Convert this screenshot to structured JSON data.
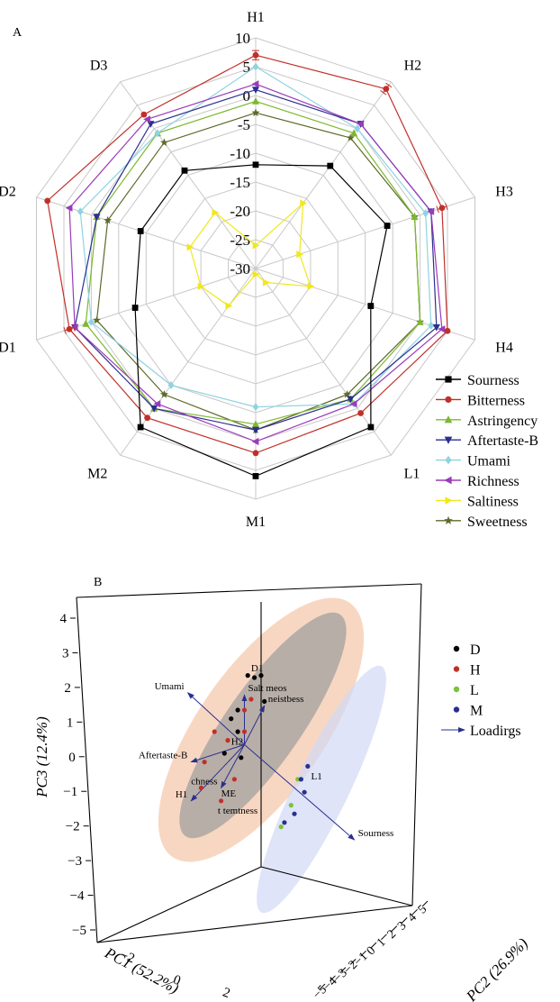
{
  "chart_data": [
    {
      "type": "radar",
      "panel_label": "A",
      "categories": [
        "H1",
        "H2",
        "H3",
        "H4",
        "L1",
        "M1",
        "M2",
        "D1",
        "D2",
        "D3"
      ],
      "radial_ticks": [
        "10",
        "5",
        "0",
        "-5",
        "-10",
        "-15",
        "-20",
        "-25",
        "-30"
      ],
      "rlim": [
        -30,
        10
      ],
      "grid": true,
      "legend_position": "right",
      "series": [
        {
          "name": "Sourness",
          "color": "#000000",
          "marker": "square",
          "values": [
            -12,
            -8,
            -6,
            -9,
            4,
            6,
            4,
            -8,
            -9,
            -9
          ]
        },
        {
          "name": "Bitterness",
          "color": "#c0302a",
          "marker": "circle",
          "values": [
            7,
            8.5,
            4,
            5,
            1,
            2,
            2,
            4,
            8,
            3
          ]
        },
        {
          "name": "Astringency",
          "color": "#7cb82f",
          "marker": "triangle-up",
          "values": [
            -1,
            -1,
            -1,
            0,
            -2,
            -3,
            0,
            1,
            -1,
            -1
          ]
        },
        {
          "name": "Aftertaste-B",
          "color": "#2b2f8f",
          "marker": "triangle-down",
          "values": [
            1,
            1,
            2,
            3,
            -2,
            -2,
            0,
            3,
            -1,
            1
          ]
        },
        {
          "name": "Umami",
          "color": "#8fd3e0",
          "marker": "diamond",
          "values": [
            5,
            0,
            1,
            2,
            -1,
            -6,
            -5,
            0,
            2,
            -1
          ]
        },
        {
          "name": "Richness",
          "color": "#9a3bbb",
          "marker": "triangle-left",
          "values": [
            2,
            1,
            2,
            4,
            -1,
            0,
            -1,
            3,
            4,
            2
          ]
        },
        {
          "name": "Saltiness",
          "color": "#f0e81c",
          "marker": "triangle-right",
          "values": [
            -26,
            -16,
            -22,
            -20,
            -27,
            -29,
            -22,
            -20,
            -18,
            -18
          ]
        },
        {
          "name": "Sweetness",
          "color": "#5e6a2a",
          "marker": "star",
          "values": [
            -3,
            -2,
            -1,
            0,
            -3,
            -2,
            -3,
            -1,
            -3,
            -3
          ]
        }
      ],
      "error_bar_points": [
        [
          "Bitterness",
          "H1"
        ],
        [
          "Bitterness",
          "H2"
        ],
        [
          "Bitterness",
          "H3"
        ],
        [
          "Bitterness",
          "D1"
        ]
      ]
    },
    {
      "type": "scatter3d",
      "panel_label": "B",
      "axes": {
        "x": {
          "label": "PC1 (52.2%)",
          "ticks": [
            "−2",
            "0",
            "2"
          ],
          "lim": [
            -3,
            3
          ]
        },
        "y": {
          "label": "PC2 (26.9%)",
          "ticks": [
            "−5",
            "−4",
            "−3",
            "−2",
            "−1",
            "0",
            "1",
            "2",
            "3",
            "4",
            "5"
          ],
          "lim": [
            -5,
            5
          ]
        },
        "z": {
          "label": "PC3 (12.4%)",
          "ticks": [
            "4",
            "3",
            "2",
            "1",
            "0",
            "−1",
            "−2",
            "−3",
            "−4",
            "−5"
          ],
          "lim": [
            -5,
            4.5
          ]
        }
      },
      "legend": [
        {
          "name": "D",
          "color": "#000000",
          "kind": "dot"
        },
        {
          "name": "H",
          "color": "#c0302a",
          "kind": "dot"
        },
        {
          "name": "L",
          "color": "#7cc23b",
          "kind": "dot"
        },
        {
          "name": "M",
          "color": "#2b2f8f",
          "kind": "dot"
        },
        {
          "name": "Loadirgs",
          "color": "#2b2f8f",
          "kind": "arrow"
        }
      ],
      "legend_position": "right",
      "ellipses": [
        {
          "group": "H",
          "color": "#f2c4a8"
        },
        {
          "group": "D",
          "color": "#a9a9a9"
        },
        {
          "group": "L+M",
          "color": "#cfd6f2"
        }
      ],
      "points": [
        {
          "group": "D",
          "x": -0.4,
          "z": 1.8
        },
        {
          "group": "D",
          "x": -0.2,
          "z": 1.75
        },
        {
          "group": "D",
          "x": 0.0,
          "z": 1.8
        },
        {
          "group": "D",
          "x": 0.1,
          "z": 1.2
        },
        {
          "group": "D",
          "x": -0.7,
          "z": 1.0
        },
        {
          "group": "D",
          "x": -0.9,
          "z": 0.8
        },
        {
          "group": "D",
          "x": -0.7,
          "z": 0.5
        },
        {
          "group": "D",
          "x": -0.6,
          "z": -0.1
        },
        {
          "group": "D",
          "x": -1.1,
          "z": 0.0
        },
        {
          "group": "H",
          "x": -1.4,
          "z": 0.5
        },
        {
          "group": "H",
          "x": -0.5,
          "z": 1.0
        },
        {
          "group": "H",
          "x": -0.3,
          "z": 1.25
        },
        {
          "group": "H",
          "x": -1.0,
          "z": 0.3
        },
        {
          "group": "H",
          "x": -1.7,
          "z": -0.2
        },
        {
          "group": "H",
          "x": -1.8,
          "z": -0.8
        },
        {
          "group": "H",
          "x": -0.8,
          "z": -0.6
        },
        {
          "group": "H",
          "x": -1.2,
          "z": -1.1
        },
        {
          "group": "H",
          "x": -0.5,
          "z": 0.5
        },
        {
          "group": "L",
          "x": 1.1,
          "z": -0.6
        },
        {
          "group": "L",
          "x": 0.9,
          "z": -1.2
        },
        {
          "group": "L",
          "x": 0.6,
          "z": -1.7
        },
        {
          "group": "M",
          "x": 1.4,
          "z": -0.3
        },
        {
          "group": "M",
          "x": 1.2,
          "z": -0.6
        },
        {
          "group": "M",
          "x": 1.0,
          "z": -1.4
        },
        {
          "group": "M",
          "x": 0.7,
          "z": -1.6
        },
        {
          "group": "M",
          "x": 1.3,
          "z": -0.9
        }
      ],
      "loadings": [
        {
          "name": "Umami",
          "x": -2.2,
          "z": 1.4
        },
        {
          "name": "Salt meos",
          "x": -0.5,
          "z": 1.35
        },
        {
          "name": "neistbess",
          "x": 0.1,
          "z": 1.1
        },
        {
          "name": "Aftertaste-B",
          "x": -2.1,
          "z": -0.2
        },
        {
          "name": "Sourness",
          "x": 2.8,
          "z": -2.0
        },
        {
          "name": "H1",
          "x": -2.1,
          "z": -1.1
        },
        {
          "name": "chness",
          "x": -1.2,
          "z": -0.8
        }
      ],
      "point_labels": [
        {
          "text": "D1",
          "x": -0.3,
          "z": 1.9
        },
        {
          "text": "H2",
          "x": -0.9,
          "z": 0.2
        },
        {
          "text": "L1",
          "x": 1.5,
          "z": -0.6
        },
        {
          "text": "ME",
          "x": -1.2,
          "z": -1.0
        },
        {
          "text": "t temtness",
          "x": -1.3,
          "z": -1.4
        }
      ]
    }
  ]
}
